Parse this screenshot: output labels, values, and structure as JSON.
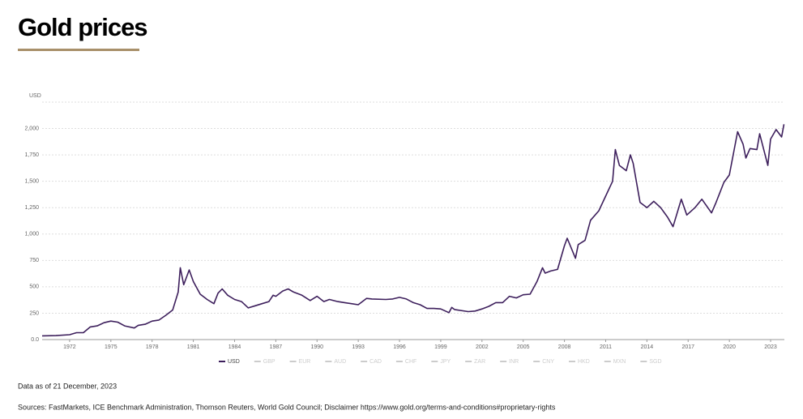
{
  "chart_data": {
    "type": "line",
    "title": "Gold prices",
    "y_label": "USD",
    "x": [
      1970,
      1971,
      1972,
      1972.5,
      1973,
      1973.5,
      1974,
      1974.5,
      1975,
      1975.5,
      1976,
      1976.7,
      1977,
      1977.5,
      1978,
      1978.5,
      1979,
      1979.5,
      1979.9,
      1980.05,
      1980.3,
      1980.7,
      1981,
      1981.5,
      1982,
      1982.5,
      1982.8,
      1983.1,
      1983.5,
      1984,
      1984.5,
      1985,
      1985.5,
      1986,
      1986.5,
      1986.8,
      1987,
      1987.5,
      1987.9,
      1988.3,
      1988.9,
      1989.5,
      1990,
      1990.5,
      1990.9,
      1991.5,
      1992,
      1992.5,
      1993,
      1993.6,
      1994,
      1995,
      1995.5,
      1996,
      1996.5,
      1997,
      1997.5,
      1998,
      1998.5,
      1999,
      1999.6,
      1999.8,
      2000,
      2001,
      2001.5,
      2002,
      2002.5,
      2003,
      2003.5,
      2004,
      2004.5,
      2005,
      2005.5,
      2006,
      2006.4,
      2006.6,
      2007,
      2007.5,
      2008,
      2008.2,
      2008.8,
      2009,
      2009.5,
      2009.9,
      2010.5,
      2011,
      2011.5,
      2011.7,
      2012,
      2012.5,
      2012.8,
      2013,
      2013.5,
      2014,
      2014.5,
      2015,
      2015.5,
      2015.9,
      2016.5,
      2016.9,
      2017.5,
      2018,
      2018.7,
      2019,
      2019.6,
      2020,
      2020.6,
      2021,
      2021.2,
      2021.5,
      2022,
      2022.2,
      2022.8,
      2023,
      2023.4,
      2023.8,
      2023.97
    ],
    "series": [
      {
        "name": "USD",
        "color": "#3d1f5c",
        "values": [
          35,
          38,
          46,
          65,
          65,
          120,
          130,
          160,
          175,
          165,
          130,
          110,
          135,
          145,
          175,
          185,
          230,
          280,
          450,
          680,
          520,
          660,
          550,
          430,
          380,
          340,
          440,
          480,
          420,
          380,
          360,
          300,
          320,
          340,
          360,
          420,
          410,
          460,
          480,
          450,
          420,
          370,
          410,
          360,
          380,
          360,
          350,
          340,
          330,
          390,
          385,
          380,
          385,
          400,
          385,
          350,
          330,
          295,
          295,
          290,
          255,
          305,
          285,
          265,
          270,
          290,
          315,
          350,
          350,
          410,
          395,
          425,
          430,
          550,
          680,
          630,
          650,
          665,
          890,
          960,
          770,
          900,
          940,
          1130,
          1220,
          1360,
          1500,
          1800,
          1650,
          1600,
          1750,
          1670,
          1300,
          1250,
          1310,
          1250,
          1160,
          1070,
          1330,
          1180,
          1250,
          1330,
          1200,
          1290,
          1490,
          1560,
          1970,
          1850,
          1720,
          1810,
          1800,
          1950,
          1650,
          1900,
          1990,
          1920,
          2040
        ]
      }
    ],
    "other_series_names": [
      "GBP",
      "EUR",
      "AUD",
      "CAD",
      "CHF",
      "JPY",
      "ZAR",
      "INR",
      "CNY",
      "HKD",
      "MXN",
      "SGD"
    ],
    "xlim": [
      1970,
      2024
    ],
    "xticks": [
      1972,
      1975,
      1978,
      1981,
      1984,
      1987,
      1990,
      1993,
      1996,
      1999,
      2002,
      2005,
      2008,
      2011,
      2014,
      2017,
      2020,
      2023
    ],
    "ylim": [
      0,
      2250
    ],
    "yticks": [
      {
        "value": 0,
        "label": "0.0"
      },
      250,
      500,
      750,
      {
        "value": 1000,
        "label": "1,000"
      },
      {
        "value": 1250,
        "label": "1,250"
      },
      {
        "value": 1500,
        "label": "1,500"
      },
      {
        "value": 1750,
        "label": "1,750"
      },
      {
        "value": 2000,
        "label": "2,000"
      }
    ],
    "grid": true,
    "note": "Data as of 21 December, 2023",
    "sources": "Sources: FastMarkets, ICE Benchmark Administration, Thomson Reuters, World Gold Council; Disclaimer https://www.gold.org/terms-and-conditions#proprietary-rights"
  }
}
